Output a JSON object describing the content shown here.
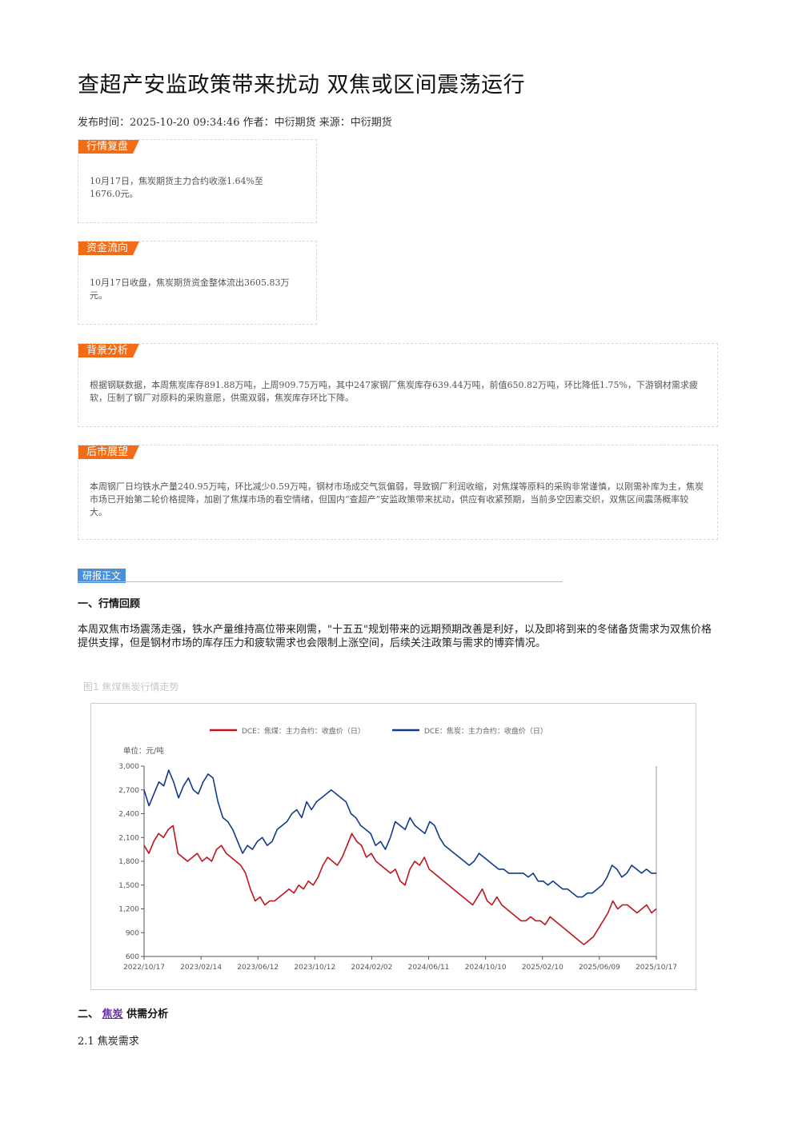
{
  "article": {
    "title": "查超产安监政策带来扰动 双焦或区间震荡运行",
    "meta": "发布时间：2025-10-20 09:34:46 作者：中衍期货 来源：中衍期货"
  },
  "boxes": [
    {
      "tag": "行情复盘",
      "text": "10月17日，焦炭期货主力合约收涨1.64%至1676.0元。"
    },
    {
      "tag": "资金流向",
      "text": "10月17日收盘，焦炭期货资金整体流出3605.83万元。"
    },
    {
      "tag": "背景分析",
      "text": "根据钢联数据，本周焦炭库存891.88万吨，上周909.75万吨，其中247家钢厂焦炭库存639.44万吨，前值650.82万吨，环比降低1.75%，下游钢材需求疲软，压制了钢厂对原料的采购意愿，供需双弱，焦炭库存环比下降。"
    },
    {
      "tag": "后市展望",
      "text": "本周钢厂日均铁水产量240.95万吨，环比减少0.59万吨，钢材市场成交气氛偏弱，导致钢厂利润收缩，对焦煤等原料的采购非常谨慎，以刚需补库为主，焦炭市场已开始第二轮价格提降，加剧了焦煤市场的看空情绪，但国内“查超产”安监政策带来扰动，供应有收紧预期，当前多空因素交织，双焦区间震荡概率较大。"
    }
  ],
  "report": {
    "section_tag": "研报正文",
    "h1": "一、行情回顾",
    "p1": "本周双焦市场震荡走强，铁水产量维持高位带来刚需，\"十五五\"规划带来的远期预期改善是利好，以及即将到来的冬储备货需求为双焦价格提供支撑，但是钢材市场的库存压力和疲软需求也会限制上涨空间，后续关注政策与需求的博弈情况。",
    "figure_caption": "图1  焦煤焦炭行情走势",
    "h2_prefix": "二、",
    "h2_link": "焦炭",
    "h2_suffix": "供需分析",
    "sub1": "2.1 焦炭需求"
  },
  "chart_data": {
    "type": "line",
    "unit_label": "单位：元/吨",
    "ylim": [
      600,
      3000
    ],
    "yticks": [
      "600",
      "900",
      "1,200",
      "1,500",
      "1,800",
      "2,100",
      "2,400",
      "2,700",
      "3,000"
    ],
    "xticks": [
      "2022/10/17",
      "2023/02/14",
      "2023/06/12",
      "2023/10/12",
      "2024/02/02",
      "2024/06/11",
      "2024/10/10",
      "2025/02/10",
      "2025/06/09",
      "2025/10/17"
    ],
    "series": [
      {
        "name": "DCE：焦煤：主力合约：收盘价（日）",
        "color": "#c0141c",
        "values": [
          2000,
          1900,
          2050,
          2150,
          2100,
          2200,
          2250,
          1900,
          1850,
          1800,
          1850,
          1900,
          1800,
          1850,
          1800,
          1950,
          2000,
          1900,
          1850,
          1800,
          1750,
          1650,
          1450,
          1300,
          1350,
          1250,
          1300,
          1300,
          1350,
          1400,
          1450,
          1400,
          1500,
          1450,
          1550,
          1500,
          1600,
          1750,
          1850,
          1800,
          1750,
          1850,
          2000,
          2150,
          2050,
          2000,
          1850,
          1900,
          1800,
          1750,
          1700,
          1650,
          1700,
          1550,
          1500,
          1700,
          1800,
          1750,
          1850,
          1700,
          1650,
          1600,
          1550,
          1500,
          1450,
          1400,
          1350,
          1300,
          1250,
          1350,
          1450,
          1300,
          1250,
          1350,
          1250,
          1200,
          1150,
          1100,
          1050,
          1050,
          1100,
          1050,
          1050,
          1000,
          1100,
          1050,
          1000,
          950,
          900,
          850,
          800,
          750,
          800,
          850,
          950,
          1050,
          1150,
          1300,
          1200,
          1250,
          1250,
          1200,
          1150,
          1200,
          1250,
          1150,
          1200
        ]
      },
      {
        "name": "DCE：焦炭：主力合约：收盘价（日）",
        "color": "#123a8c",
        "values": [
          2700,
          2500,
          2650,
          2800,
          2750,
          2950,
          2800,
          2600,
          2750,
          2850,
          2700,
          2650,
          2800,
          2900,
          2850,
          2550,
          2350,
          2300,
          2200,
          2050,
          1900,
          2000,
          1950,
          2050,
          2100,
          2000,
          2050,
          2200,
          2250,
          2300,
          2400,
          2450,
          2350,
          2550,
          2450,
          2550,
          2600,
          2650,
          2700,
          2650,
          2600,
          2550,
          2400,
          2350,
          2250,
          2200,
          2150,
          2000,
          2050,
          1950,
          2100,
          2300,
          2250,
          2200,
          2350,
          2250,
          2200,
          2150,
          2300,
          2250,
          2100,
          2000,
          1950,
          1900,
          1850,
          1800,
          1750,
          1800,
          1900,
          1850,
          1800,
          1750,
          1700,
          1700,
          1650,
          1650,
          1650,
          1650,
          1600,
          1650,
          1550,
          1550,
          1500,
          1550,
          1500,
          1450,
          1450,
          1400,
          1350,
          1350,
          1400,
          1400,
          1450,
          1500,
          1600,
          1750,
          1700,
          1600,
          1650,
          1750,
          1700,
          1650,
          1700,
          1650,
          1650
        ]
      }
    ]
  }
}
